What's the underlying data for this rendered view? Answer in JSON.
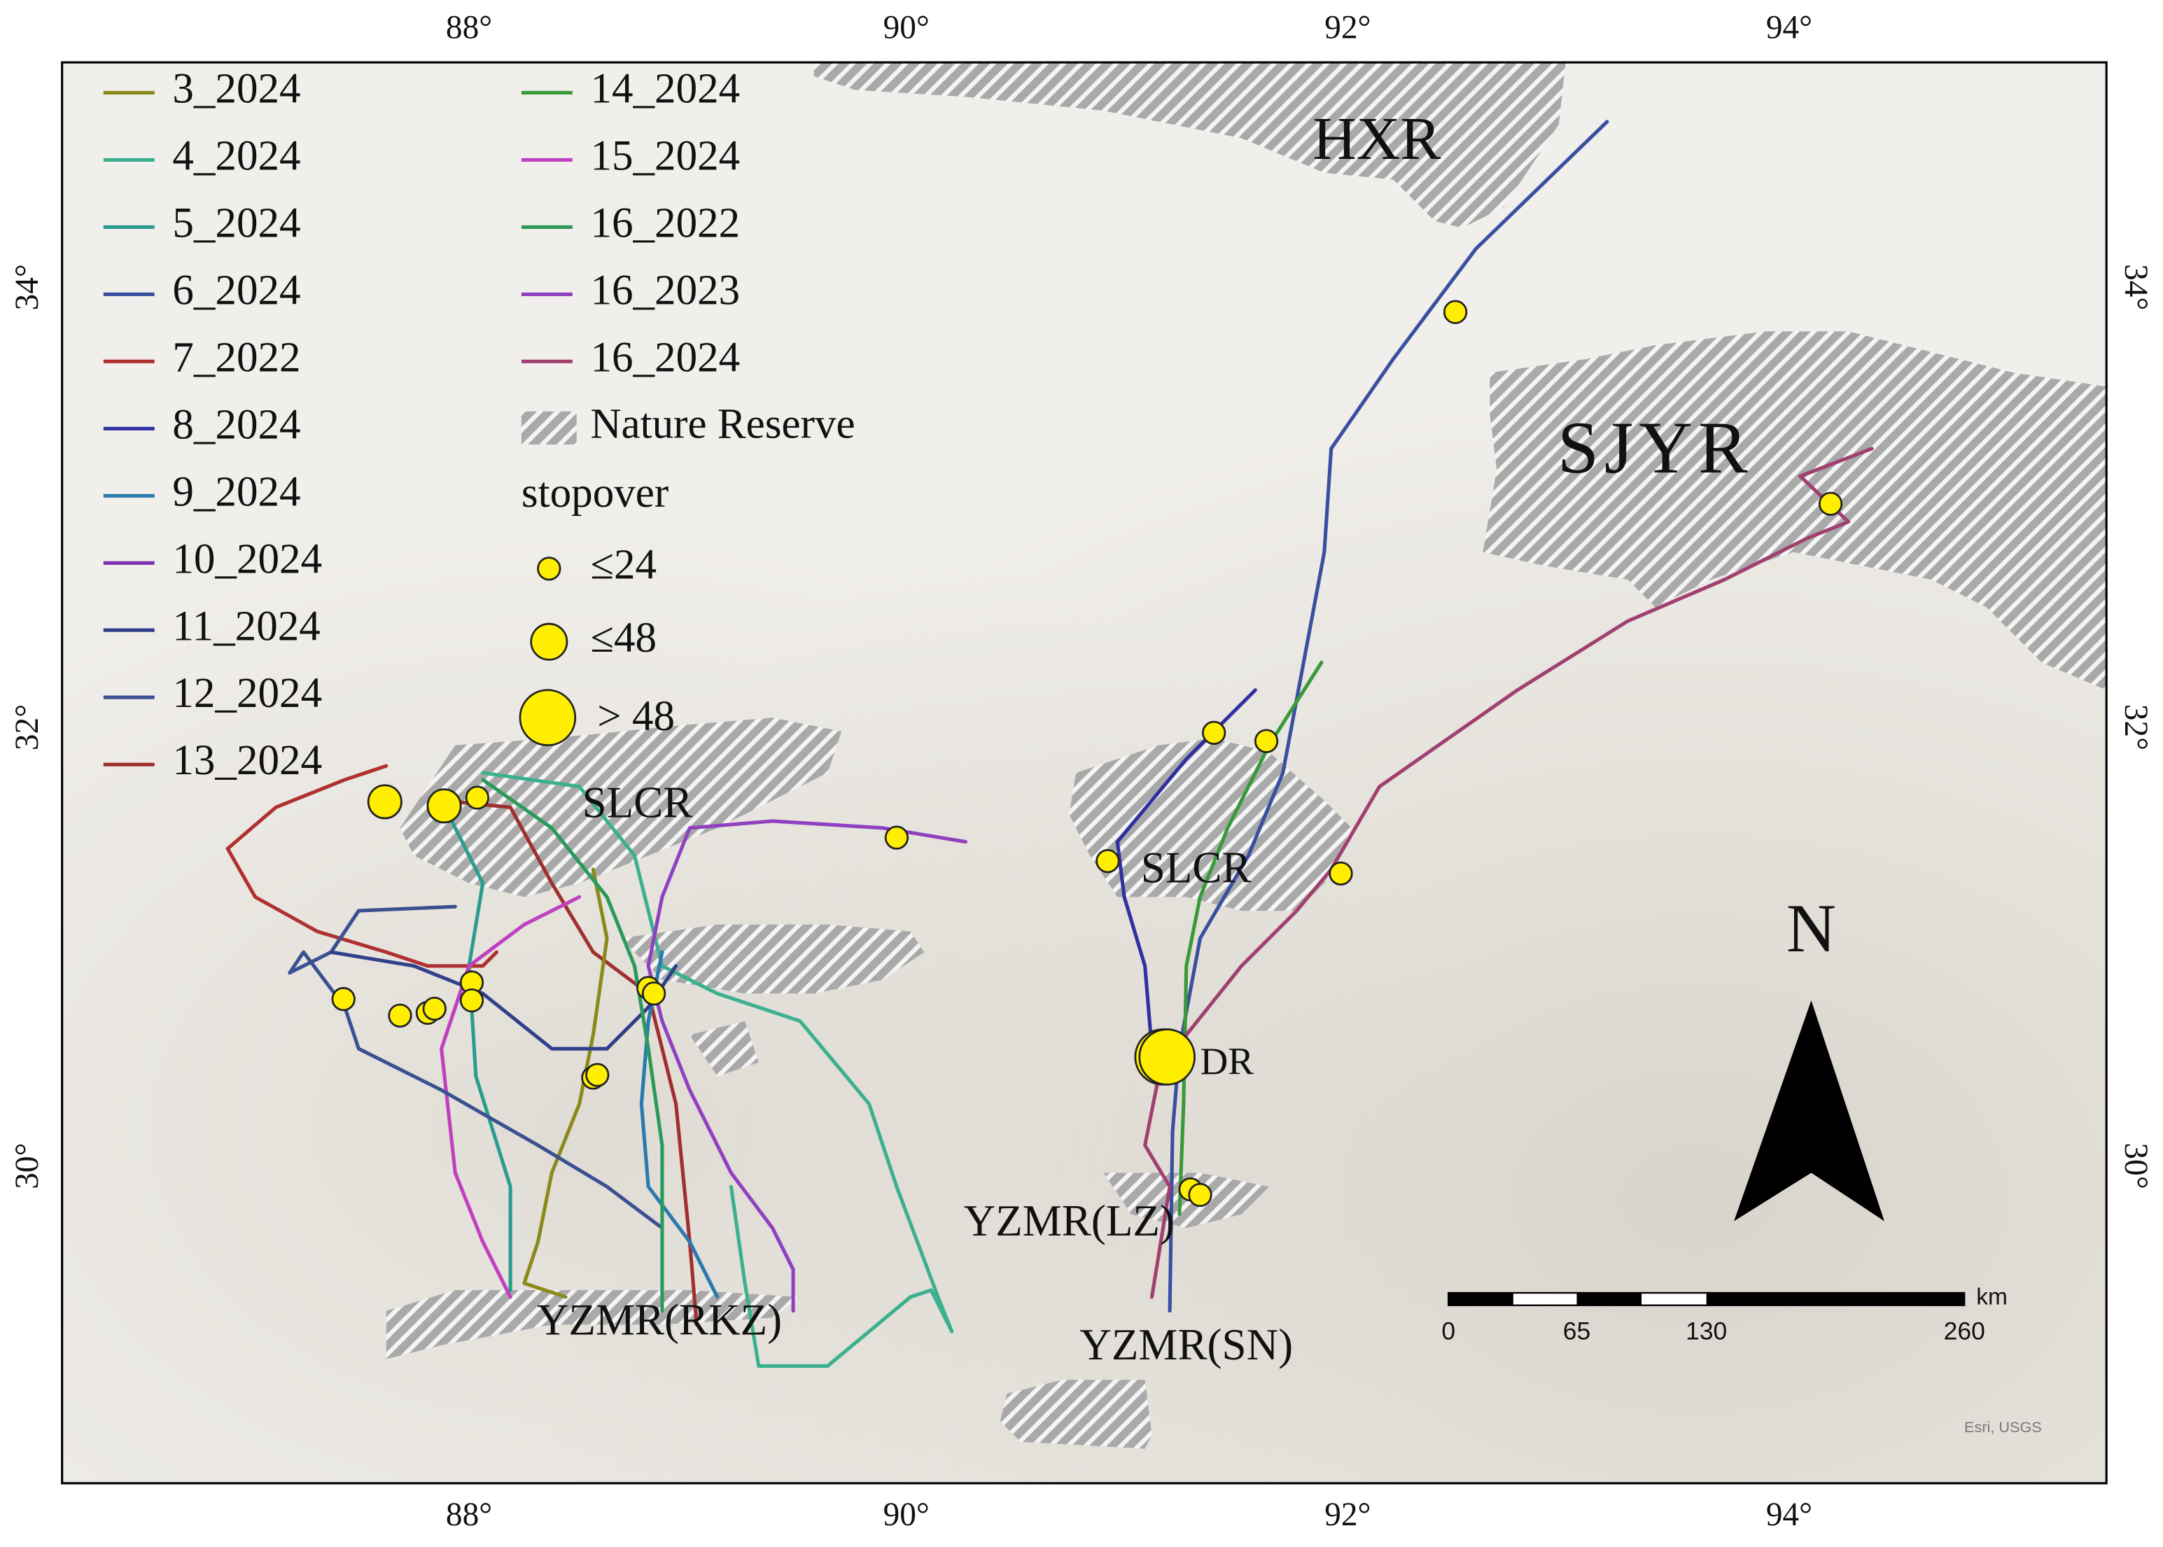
{
  "axes": {
    "lon_ticks": [
      "88°",
      "90°",
      "92°",
      "94°"
    ],
    "lat_ticks": [
      "34°",
      "32°",
      "30°"
    ]
  },
  "legend": {
    "tracks": [
      "3_2024",
      "4_2024",
      "5_2024",
      "6_2024",
      "7_2022",
      "8_2024",
      "9_2024",
      "10_2024",
      "11_2024",
      "12_2024",
      "13_2024",
      "14_2024",
      "15_2024",
      "16_2022",
      "16_2023",
      "16_2024"
    ],
    "nature_reserve": "Nature Reserve",
    "stopover_title": "stopover",
    "stopover_sizes": [
      "≤24",
      "≤48",
      "> 48"
    ]
  },
  "places": {
    "hxr": "HXR",
    "sjyr": "SJYR",
    "slcr_west": "SLCR",
    "slcr_east": "SLCR",
    "dr": "DR",
    "yzmr_lz": "YZMR(LZ)",
    "yzmr_rkz": "YZMR(RKZ)",
    "yzmr_sn": "YZMR(SN)"
  },
  "north": "N",
  "scale_bar": {
    "unit": "km",
    "ticks": [
      "0",
      "65",
      "130",
      "260"
    ]
  },
  "attribution": "Esri, USGS"
}
